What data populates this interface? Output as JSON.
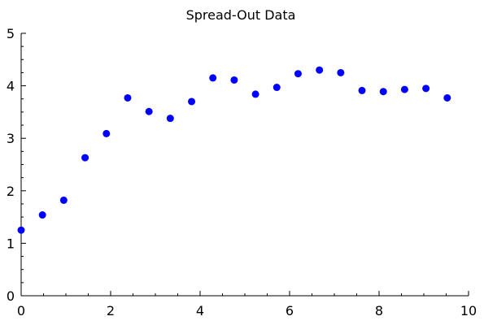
{
  "chart_data": {
    "type": "scatter",
    "title": "Spread-Out Data",
    "xlabel": "",
    "ylabel": "",
    "xlim": [
      0,
      10
    ],
    "ylim": [
      0,
      5
    ],
    "grid": false,
    "x_major_ticks": [
      0,
      2,
      4,
      6,
      8,
      10
    ],
    "y_major_ticks": [
      0,
      1,
      2,
      3,
      4,
      5
    ],
    "x_tick_labels": [
      "0",
      "2",
      "4",
      "6",
      "8",
      "10"
    ],
    "y_tick_labels": [
      "0",
      "1",
      "2",
      "3",
      "4",
      "5"
    ],
    "marker_color": "#0000ff",
    "x": [
      0.0,
      0.476,
      0.952,
      1.429,
      1.905,
      2.381,
      2.857,
      3.333,
      3.81,
      4.286,
      4.762,
      5.238,
      5.714,
      6.19,
      6.667,
      7.143,
      7.619,
      8.095,
      8.571,
      9.048,
      9.524
    ],
    "y": [
      1.25,
      1.54,
      1.82,
      2.63,
      3.09,
      3.77,
      3.51,
      3.38,
      3.7,
      4.15,
      4.11,
      3.84,
      3.97,
      4.23,
      4.3,
      4.25,
      3.91,
      3.89,
      3.93,
      3.95,
      3.77
    ]
  }
}
